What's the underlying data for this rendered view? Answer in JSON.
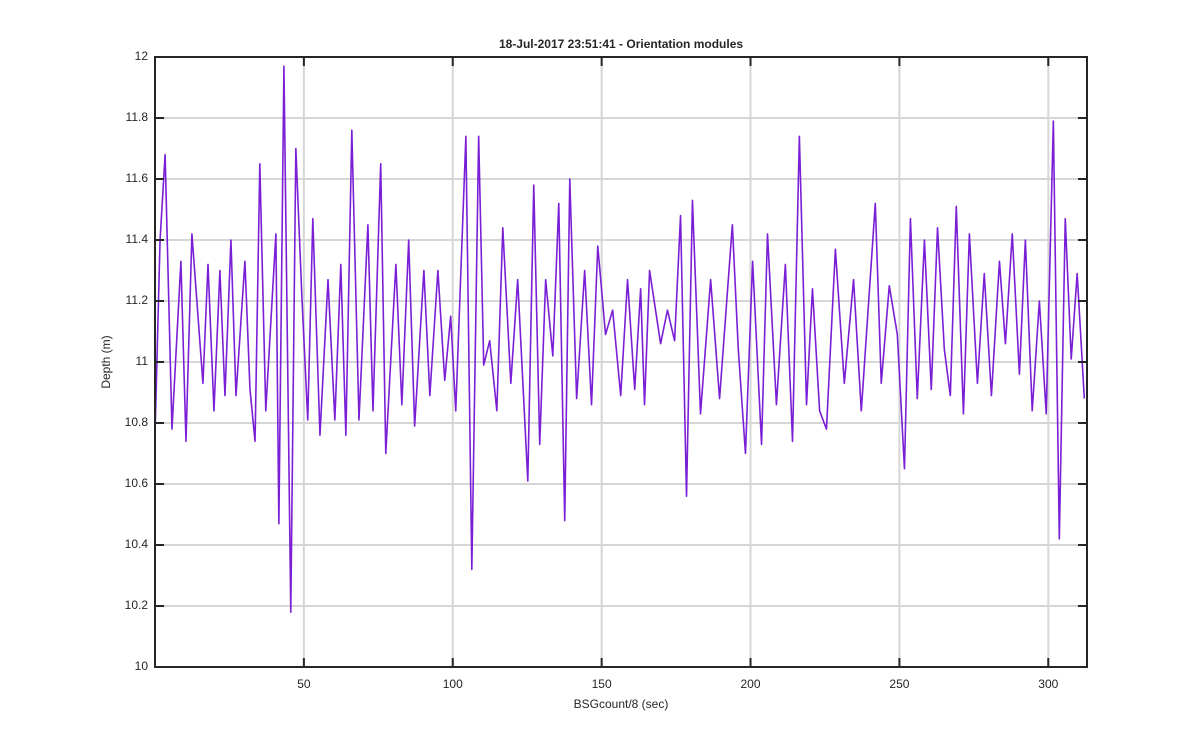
{
  "chart_data": {
    "type": "line",
    "title": "18-Jul-2017 23:51:41 - Orientation modules",
    "xlabel": "BSGcount/8 (sec)",
    "ylabel": "Depth (m)",
    "xlim": [
      0,
      313
    ],
    "ylim": [
      10,
      12
    ],
    "xticks": [
      50,
      100,
      150,
      200,
      250,
      300
    ],
    "yticks": [
      10,
      10.2,
      10.4,
      10.6,
      10.8,
      11,
      11.2,
      11.4,
      11.6,
      11.8,
      12
    ],
    "grid": true,
    "x": [
      0,
      1.7,
      3.4,
      5.7,
      8.7,
      10.4,
      12.4,
      16.1,
      17.8,
      19.8,
      21.8,
      23.5,
      25.5,
      27.2,
      30.2,
      31.9,
      33.6,
      35.2,
      37.2,
      40.6,
      41.6,
      43.3,
      45.6,
      47.3,
      49.3,
      51.3,
      53.0,
      55.4,
      58.1,
      60.4,
      62.4,
      64.1,
      66.1,
      68.5,
      71.5,
      73.2,
      75.8,
      77.5,
      80.9,
      82.9,
      85.2,
      87.2,
      90.3,
      92.3,
      95.0,
      97.3,
      99.3,
      101.0,
      104.4,
      106.4,
      108.7,
      110.4,
      112.4,
      114.8,
      116.8,
      119.5,
      121.8,
      125.2,
      127.2,
      129.2,
      131.2,
      133.6,
      135.6,
      137.6,
      139.3,
      141.6,
      144.3,
      146.6,
      148.7,
      151.3,
      153.7,
      156.4,
      158.7,
      161.1,
      163.1,
      164.4,
      166.1,
      169.8,
      172.1,
      174.5,
      176.5,
      178.5,
      180.5,
      183.2,
      186.6,
      189.6,
      193.9,
      195.9,
      198.3,
      200.7,
      203.7,
      205.7,
      208.7,
      211.7,
      214.1,
      216.4,
      218.8,
      220.8,
      223.2,
      225.5,
      228.5,
      231.5,
      234.6,
      237.2,
      241.9,
      243.9,
      246.6,
      249.3,
      251.7,
      253.7,
      256.0,
      258.4,
      260.7,
      262.8,
      265.1,
      267.1,
      269.1,
      271.5,
      273.5,
      276.2,
      278.5,
      280.9,
      283.6,
      285.6,
      287.9,
      290.3,
      292.3,
      294.6,
      297.0,
      299.3,
      301.7,
      303.7,
      305.7,
      307.7,
      309.7,
      312.1
    ],
    "series": [
      {
        "color": "#7a1fd6",
        "values": [
          10.76,
          11.4,
          11.68,
          10.78,
          11.33,
          10.74,
          11.42,
          10.93,
          11.32,
          10.84,
          11.3,
          10.89,
          11.4,
          10.89,
          11.33,
          10.91,
          10.74,
          11.65,
          10.84,
          11.42,
          10.47,
          11.97,
          10.18,
          11.7,
          11.22,
          10.81,
          11.47,
          10.76,
          11.27,
          10.81,
          11.32,
          10.76,
          11.76,
          10.81,
          11.45,
          10.84,
          11.65,
          10.7,
          11.32,
          10.86,
          11.4,
          10.79,
          11.3,
          10.89,
          11.3,
          10.94,
          11.15,
          10.84,
          11.74,
          10.32,
          11.74,
          10.99,
          11.07,
          10.84,
          11.44,
          10.93,
          11.27,
          10.61,
          11.58,
          10.73,
          11.27,
          11.02,
          11.52,
          10.48,
          11.6,
          10.88,
          11.3,
          10.86,
          11.38,
          11.09,
          11.17,
          10.89,
          11.27,
          10.91,
          11.24,
          10.86,
          11.3,
          11.06,
          11.17,
          11.07,
          11.48,
          10.56,
          11.53,
          10.83,
          11.27,
          10.88,
          11.45,
          11.04,
          10.7,
          11.33,
          10.73,
          11.42,
          10.86,
          11.32,
          10.74,
          11.74,
          10.86,
          11.24,
          10.84,
          10.78,
          11.37,
          10.93,
          11.27,
          10.84,
          11.52,
          10.93,
          11.25,
          11.09,
          10.65,
          11.47,
          10.88,
          11.4,
          10.91,
          11.44,
          11.04,
          10.89,
          11.51,
          10.83,
          11.42,
          10.93,
          11.29,
          10.89,
          11.33,
          11.06,
          11.42,
          10.96,
          11.4,
          10.84,
          11.2,
          10.83,
          11.79,
          10.42,
          11.47,
          11.01,
          11.29,
          10.88
        ]
      }
    ]
  }
}
